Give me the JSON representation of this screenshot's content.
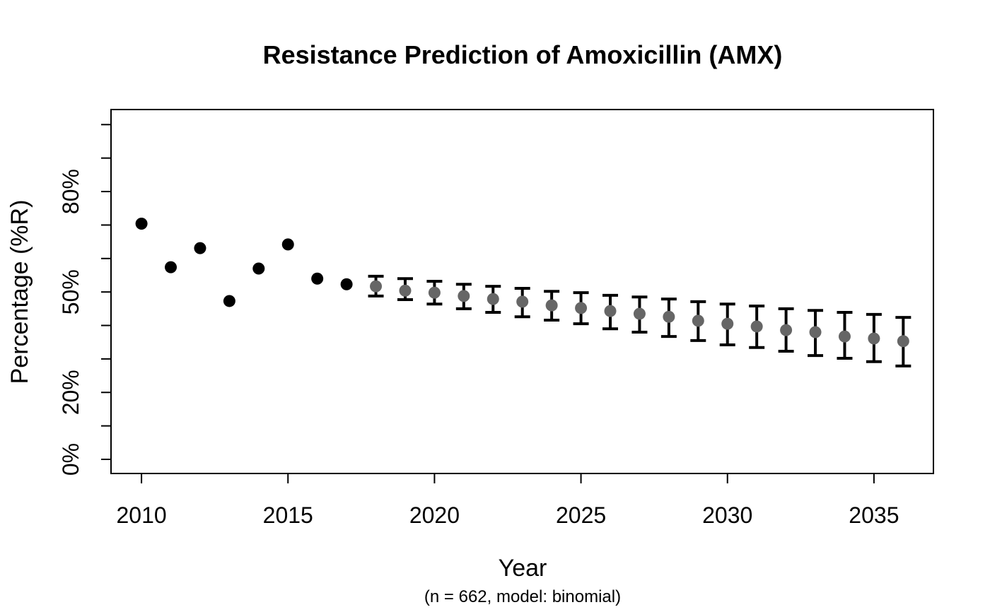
{
  "page": {
    "background": "#ffffff"
  },
  "chart_data": {
    "type": "scatter",
    "title": "Resistance Prediction of Amoxicillin (AMX)",
    "subtitle": "(n = 662, model: binomial)",
    "xlabel": "Year",
    "ylabel": "Percentage (%R)",
    "grid": false,
    "legend": null,
    "xlim": [
      2008.96,
      2037.03
    ],
    "ylim": [
      -4.22,
      104.5
    ],
    "x_axis": {
      "ticks": [
        2010,
        2015,
        2020,
        2025,
        2030,
        2035
      ]
    },
    "y_axis": {
      "ticks": [
        0,
        10,
        20,
        30,
        40,
        50,
        60,
        70,
        80,
        90,
        100
      ],
      "tick_labels": {
        "0": "0%",
        "20": "20%",
        "50": "50%",
        "80": "80%"
      }
    },
    "colors": {
      "observed": "#000000",
      "predicted": "#666666",
      "error_bar": "#000000"
    },
    "series": [
      {
        "name": "observed",
        "marker": "filled-circle",
        "color_key": "observed",
        "error_bars": false,
        "points": [
          [
            2010,
            70.4
          ],
          [
            2011,
            57.4
          ],
          [
            2012,
            63.1
          ],
          [
            2013,
            47.3
          ],
          [
            2014,
            57.0
          ],
          [
            2015,
            64.2
          ],
          [
            2016,
            54.0
          ],
          [
            2017,
            52.3
          ]
        ]
      },
      {
        "name": "predicted",
        "marker": "filled-circle",
        "color_key": "predicted",
        "error_bars": true,
        "points": [
          [
            2018,
            51.7,
            48.8,
            54.7
          ],
          [
            2019,
            50.4,
            47.7,
            54.0
          ],
          [
            2020,
            49.8,
            46.4,
            53.2
          ],
          [
            2021,
            48.8,
            45.0,
            52.3
          ],
          [
            2022,
            47.9,
            43.9,
            51.7
          ],
          [
            2023,
            47.1,
            42.6,
            51.1
          ],
          [
            2024,
            46.0,
            41.6,
            50.2
          ],
          [
            2025,
            45.2,
            40.5,
            49.8
          ],
          [
            2026,
            44.3,
            39.0,
            49.0
          ],
          [
            2027,
            43.5,
            38.0,
            48.5
          ],
          [
            2028,
            42.6,
            36.7,
            47.9
          ],
          [
            2029,
            41.4,
            35.5,
            47.1
          ],
          [
            2030,
            40.5,
            34.2,
            46.4
          ],
          [
            2031,
            39.7,
            33.4,
            45.8
          ],
          [
            2032,
            38.6,
            32.3,
            45.0
          ],
          [
            2033,
            38.0,
            31.0,
            44.5
          ],
          [
            2034,
            36.7,
            30.2,
            43.9
          ],
          [
            2035,
            36.1,
            29.2,
            43.3
          ],
          [
            2036,
            35.3,
            27.9,
            42.4
          ]
        ]
      }
    ]
  }
}
